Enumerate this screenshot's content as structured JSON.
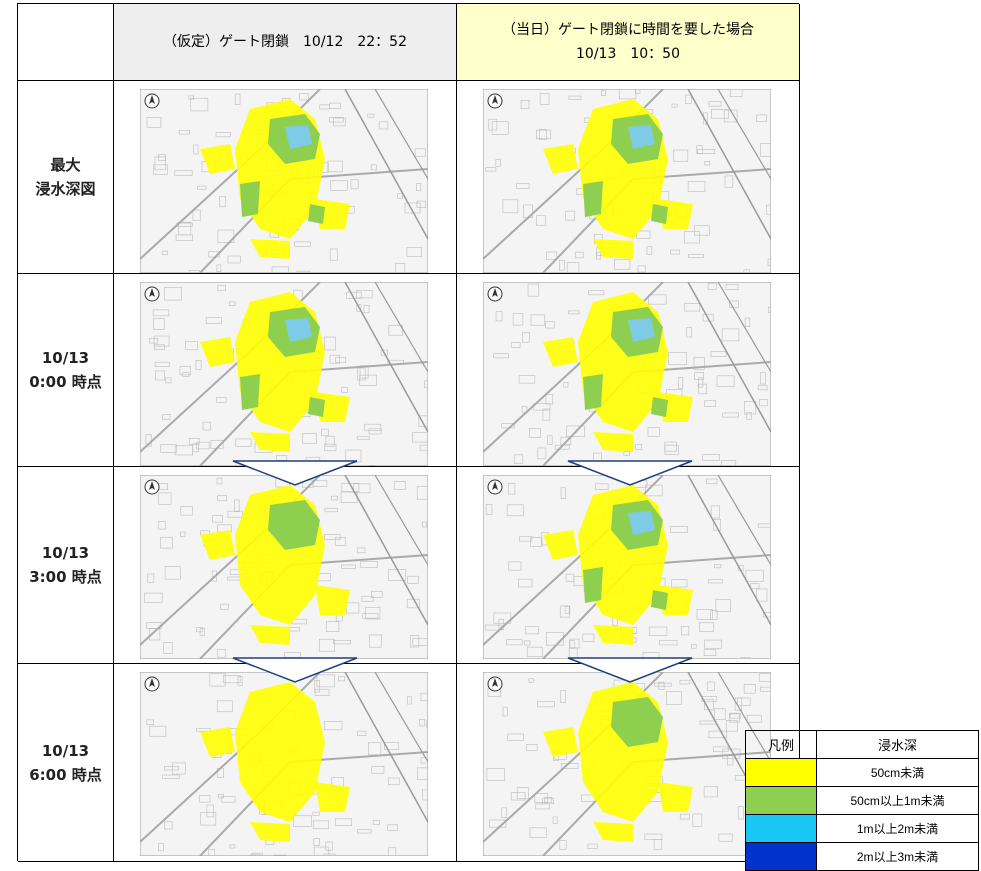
{
  "columns": [
    {
      "title": "（仮定）ゲート閉鎖　10/12　22：52",
      "line2": ""
    },
    {
      "title": "（当日）ゲート閉鎖に時間を要した場合",
      "line2": "10/13　10：50"
    }
  ],
  "rows": [
    {
      "line1": "最大",
      "line2": "浸水深図"
    },
    {
      "line1": "10/13",
      "line2": "0:00 時点"
    },
    {
      "line1": "10/13",
      "line2": "3:00 時点"
    },
    {
      "line1": "10/13",
      "line2": "6:00 時点"
    }
  ],
  "legend": {
    "header_label": "凡例",
    "header_depth": "浸水深",
    "items": [
      {
        "color": "#ffff00",
        "label": "50cm未満"
      },
      {
        "color": "#8fcf4f",
        "label": "50cm以上1m未満"
      },
      {
        "color": "#19c6f4",
        "label": "1m以上2m未満"
      },
      {
        "color": "#0033cc",
        "label": "2m以上3m未満"
      }
    ]
  },
  "colors": {
    "shallow": "#ffff00",
    "medium": "#8fcf4f",
    "deep": "#7ecbe8",
    "header_left_bg": "#eeeeee",
    "header_right_bg": "#ffffcc",
    "arrow": "#1f3f7f"
  },
  "icons": {
    "north": "north-arrow-icon",
    "transition": "chevron-down-icon"
  }
}
